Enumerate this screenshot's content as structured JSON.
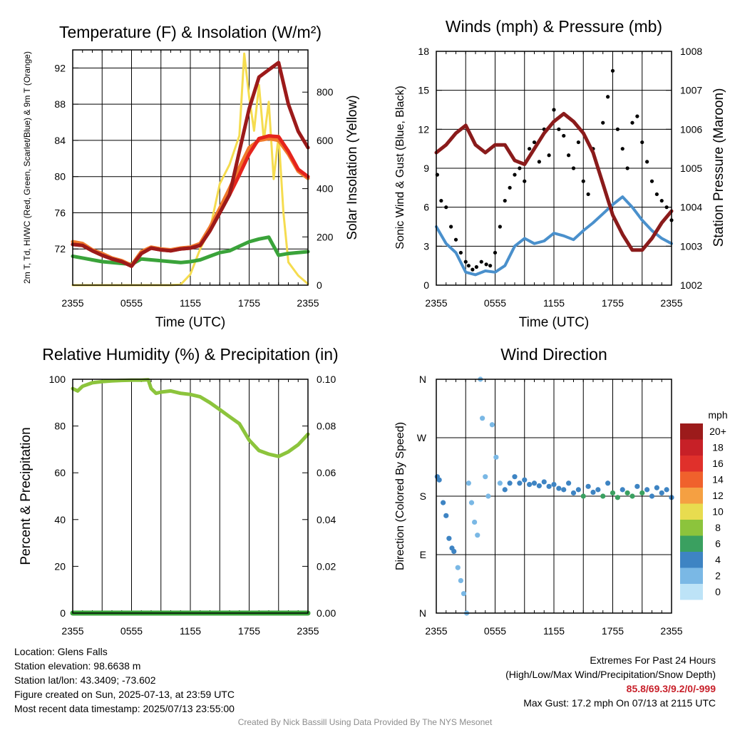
{
  "chart_data": [
    {
      "type": "line",
      "title": "Temperature (F) & Insolation (W/m²)",
      "xlabel": "Time (UTC)",
      "ylabel_left": "2m T, Td, HI/WC (Red, Green, Scarlet/Blue) & 9m T (Orange)",
      "ylabel_right": "Solar Insolation (Yellow)",
      "x_ticks": [
        "2355",
        "0555",
        "1155",
        "1755",
        "2355"
      ],
      "ylim_left": [
        68,
        94
      ],
      "yticks_left": [
        72,
        76,
        80,
        84,
        88,
        92
      ],
      "ylim_right": [
        0,
        975
      ],
      "yticks_right": [
        0,
        200,
        400,
        600,
        800
      ],
      "grid": true,
      "series": [
        {
          "color": "#e5241d",
          "axis": "left",
          "x": [
            0,
            1,
            2,
            3,
            4,
            5,
            6,
            7,
            8,
            9,
            10,
            11,
            12,
            13,
            14,
            15,
            16,
            17,
            18,
            19,
            20,
            21,
            22,
            23,
            24
          ],
          "values": [
            72.5,
            72.4,
            71.8,
            71.3,
            70.9,
            70.6,
            70.1,
            71.5,
            72.1,
            71.9,
            71.8,
            72.0,
            72.1,
            72.4,
            74.0,
            76.0,
            78.0,
            80.2,
            82.5,
            84.2,
            84.5,
            84.4,
            82.8,
            80.8,
            80.0
          ]
        },
        {
          "color": "#f07a2c",
          "axis": "left",
          "x": [
            0,
            1,
            2,
            3,
            4,
            5,
            6,
            7,
            8,
            9,
            10,
            11,
            12,
            13,
            14,
            15,
            16,
            17,
            18,
            19,
            20,
            21,
            22,
            23,
            24
          ],
          "values": [
            72.8,
            72.6,
            71.9,
            71.5,
            71.0,
            70.7,
            70.2,
            71.7,
            72.2,
            72.0,
            71.9,
            72.1,
            72.2,
            72.6,
            74.4,
            76.5,
            78.7,
            81.0,
            83.2,
            84.0,
            84.2,
            84.0,
            82.5,
            80.6,
            79.8
          ]
        },
        {
          "color": "#9c1a1a",
          "axis": "left",
          "x": [
            0,
            1,
            2,
            3,
            4,
            5,
            6,
            7,
            8,
            9,
            10,
            11,
            12,
            13,
            14,
            15,
            16,
            17,
            18,
            19,
            20,
            21,
            22,
            23,
            24
          ],
          "values": [
            72.5,
            72.4,
            71.8,
            71.3,
            70.9,
            70.6,
            70.1,
            71.5,
            72.1,
            71.9,
            71.8,
            72.0,
            72.1,
            72.4,
            74.0,
            76.0,
            78.0,
            82.8,
            87.5,
            91.0,
            91.8,
            92.6,
            88.0,
            85.0,
            83.2
          ]
        },
        {
          "color": "#3aa33a",
          "axis": "left",
          "x": [
            0,
            1,
            2,
            3,
            4,
            5,
            6,
            7,
            8,
            9,
            10,
            11,
            12,
            13,
            14,
            15,
            16,
            17,
            18,
            19,
            20,
            21,
            22,
            23,
            24
          ],
          "values": [
            71.2,
            71.0,
            70.8,
            70.6,
            70.5,
            70.4,
            70.3,
            70.9,
            70.8,
            70.7,
            70.6,
            70.5,
            70.6,
            70.8,
            71.2,
            71.6,
            71.8,
            72.3,
            72.8,
            73.1,
            73.3,
            71.3,
            71.5,
            71.6,
            71.7
          ]
        },
        {
          "color": "#f5dc4f",
          "axis": "right",
          "x": [
            0,
            1,
            2,
            3,
            4,
            5,
            6,
            7,
            8,
            9,
            10,
            11,
            12,
            13,
            14,
            15,
            16,
            17,
            17.5,
            18,
            18.5,
            19,
            19.5,
            20,
            20.5,
            21,
            21.5,
            22,
            23,
            24
          ],
          "values": [
            0,
            0,
            0,
            0,
            0,
            0,
            0,
            0,
            0,
            0,
            0,
            2,
            45,
            150,
            230,
            420,
            500,
            620,
            960,
            780,
            640,
            830,
            600,
            760,
            440,
            620,
            300,
            95,
            40,
            5
          ]
        }
      ]
    },
    {
      "type": "line",
      "title": "Winds (mph) & Pressure (mb)",
      "xlabel": "Time (UTC)",
      "ylabel_left": "Sonic Wind & Gust (Blue, Black)",
      "ylabel_right": "Station Pressure (Maroon)",
      "x_ticks": [
        "2355",
        "0555",
        "1155",
        "1755",
        "2355"
      ],
      "ylim_left": [
        0,
        18
      ],
      "yticks_left": [
        0,
        3,
        6,
        9,
        12,
        15,
        18
      ],
      "ylim_right": [
        1002,
        1008
      ],
      "yticks_right": [
        1002,
        1003,
        1004,
        1005,
        1006,
        1007,
        1008
      ],
      "grid": true,
      "series": [
        {
          "color": "#4a90cc",
          "axis": "left",
          "x": [
            0,
            1,
            2,
            3,
            4,
            5,
            6,
            7,
            8,
            9,
            10,
            11,
            12,
            13,
            14,
            15,
            16,
            17,
            18,
            19,
            20,
            21,
            22,
            23,
            24
          ],
          "values": [
            4.5,
            3.2,
            2.5,
            1.0,
            0.8,
            1.1,
            1.0,
            1.5,
            3.0,
            3.6,
            3.2,
            3.4,
            4.0,
            3.8,
            3.5,
            4.2,
            4.8,
            5.5,
            6.2,
            6.8,
            6.0,
            5.0,
            4.2,
            3.6,
            3.2
          ]
        },
        {
          "color": "#8a1b1b",
          "axis": "right",
          "x": [
            0,
            1,
            2,
            3,
            4,
            5,
            6,
            7,
            8,
            9,
            10,
            11,
            12,
            13,
            14,
            15,
            16,
            17,
            18,
            19,
            20,
            21,
            22,
            23,
            24
          ],
          "values": [
            1005.4,
            1005.6,
            1005.9,
            1006.1,
            1005.6,
            1005.4,
            1005.6,
            1005.6,
            1005.2,
            1005.1,
            1005.5,
            1005.9,
            1006.2,
            1006.4,
            1006.2,
            1005.9,
            1005.4,
            1004.6,
            1003.8,
            1003.3,
            1002.9,
            1002.9,
            1003.2,
            1003.6,
            1003.9
          ]
        },
        {
          "color": "#000000",
          "axis": "left",
          "type": "scatter",
          "x": [
            0.1,
            0.5,
            1.0,
            1.5,
            2.0,
            2.5,
            3.0,
            3.3,
            3.7,
            4.1,
            4.6,
            5.1,
            5.5,
            6.0,
            6.5,
            7.0,
            7.5,
            8.0,
            8.5,
            9.0,
            9.5,
            10.0,
            10.5,
            11.0,
            11.5,
            12.0,
            12.5,
            13.0,
            13.5,
            14.0,
            14.5,
            15.0,
            15.5,
            16.0,
            16.5,
            17.0,
            17.5,
            18.0,
            18.5,
            19.0,
            19.5,
            20.0,
            20.5,
            21.0,
            21.5,
            22.0,
            22.5,
            23.0,
            23.5,
            24.0
          ],
          "values": [
            8.5,
            6.5,
            6.0,
            4.5,
            3.5,
            2.5,
            1.8,
            1.5,
            1.2,
            1.4,
            1.8,
            1.6,
            1.5,
            2.5,
            4.5,
            6.5,
            7.5,
            8.5,
            9.0,
            8.0,
            10.5,
            11.0,
            9.5,
            12.0,
            10.0,
            13.5,
            12.0,
            11.5,
            10.0,
            9.0,
            11.0,
            8.0,
            7.0,
            10.5,
            9.0,
            12.5,
            14.5,
            16.5,
            12.0,
            10.5,
            9.0,
            12.5,
            13.0,
            11.0,
            9.5,
            8.0,
            7.0,
            6.5,
            6.0,
            5.0
          ]
        }
      ]
    },
    {
      "type": "line",
      "title": "Relative Humidity (%) & Precipitation (in)",
      "ylabel_left": "Percent & Precipitation",
      "x_ticks": [
        "2355",
        "0555",
        "1155",
        "1755",
        "2355"
      ],
      "ylim_left": [
        0,
        100
      ],
      "yticks_left": [
        0,
        20,
        40,
        60,
        80,
        100
      ],
      "ylim_right": [
        0,
        0.1
      ],
      "yticks_right": [
        "0.00",
        "0.02",
        "0.04",
        "0.06",
        "0.08",
        "0.10"
      ],
      "grid": true,
      "series": [
        {
          "color": "#8cc43c",
          "axis": "left",
          "x": [
            0,
            0.5,
            1,
            2,
            3,
            4,
            5,
            6,
            7,
            7.7,
            8,
            8.5,
            9,
            10,
            11,
            12,
            13,
            14,
            15,
            16,
            17,
            18,
            19,
            20,
            21,
            22,
            23,
            24
          ],
          "values": [
            96,
            95,
            97,
            98.5,
            99,
            99.3,
            99.5,
            99.6,
            99.6,
            99.8,
            96,
            94,
            94.5,
            95,
            94,
            93.5,
            92.5,
            90,
            87,
            84,
            81,
            74,
            69.5,
            68,
            67,
            69,
            72,
            76.5
          ]
        },
        {
          "color": "#3aa33a",
          "axis": "right",
          "x": [
            0,
            24
          ],
          "values": [
            0,
            0
          ]
        }
      ]
    },
    {
      "type": "scatter",
      "title": "Wind Direction",
      "ylabel_left": "Direction (Colored By Speed)",
      "x_ticks": [
        "2355",
        "0555",
        "1155",
        "1755",
        "2355"
      ],
      "y_ticks": [
        "N",
        "E",
        "S",
        "W",
        "N"
      ],
      "ylim_left": [
        0,
        360
      ],
      "legend_title": "mph",
      "legend_labels": [
        "20+",
        "18",
        "16",
        "14",
        "12",
        "10",
        "8",
        "6",
        "4",
        "2",
        "0"
      ],
      "legend_colors": [
        "#9c1b1b",
        "#c72027",
        "#e0302b",
        "#f0612c",
        "#f5a042",
        "#e8dc4f",
        "#8cc43c",
        "#3aa060",
        "#3e84c3",
        "#7ab8e5",
        "#bde3f7"
      ],
      "grid": true,
      "points": [
        {
          "x": 0.1,
          "dir": 210,
          "speed": 4
        },
        {
          "x": 0.3,
          "dir": 205,
          "speed": 4
        },
        {
          "x": 0.7,
          "dir": 170,
          "speed": 3
        },
        {
          "x": 1.0,
          "dir": 150,
          "speed": 4
        },
        {
          "x": 1.3,
          "dir": 115,
          "speed": 4
        },
        {
          "x": 1.6,
          "dir": 100,
          "speed": 4
        },
        {
          "x": 1.8,
          "dir": 95,
          "speed": 4
        },
        {
          "x": 2.2,
          "dir": 70,
          "speed": 2
        },
        {
          "x": 2.5,
          "dir": 50,
          "speed": 2
        },
        {
          "x": 2.8,
          "dir": 30,
          "speed": 2
        },
        {
          "x": 3.1,
          "dir": 0,
          "speed": 1
        },
        {
          "x": 3.3,
          "dir": 200,
          "speed": 2
        },
        {
          "x": 3.6,
          "dir": 170,
          "speed": 1
        },
        {
          "x": 3.9,
          "dir": 140,
          "speed": 1
        },
        {
          "x": 4.2,
          "dir": 120,
          "speed": 1
        },
        {
          "x": 4.5,
          "dir": 360,
          "speed": 1
        },
        {
          "x": 4.7,
          "dir": 300,
          "speed": 2
        },
        {
          "x": 5.0,
          "dir": 210,
          "speed": 1
        },
        {
          "x": 5.3,
          "dir": 180,
          "speed": 1
        },
        {
          "x": 5.7,
          "dir": 290,
          "speed": 1
        },
        {
          "x": 6.1,
          "dir": 240,
          "speed": 1
        },
        {
          "x": 6.5,
          "dir": 200,
          "speed": 2
        },
        {
          "x": 7.0,
          "dir": 190,
          "speed": 3
        },
        {
          "x": 7.5,
          "dir": 200,
          "speed": 4
        },
        {
          "x": 8.0,
          "dir": 210,
          "speed": 4
        },
        {
          "x": 8.5,
          "dir": 200,
          "speed": 4
        },
        {
          "x": 9.0,
          "dir": 205,
          "speed": 4
        },
        {
          "x": 9.5,
          "dir": 198,
          "speed": 4
        },
        {
          "x": 10.0,
          "dir": 200,
          "speed": 4
        },
        {
          "x": 10.5,
          "dir": 196,
          "speed": 4
        },
        {
          "x": 11.0,
          "dir": 202,
          "speed": 4
        },
        {
          "x": 11.5,
          "dir": 195,
          "speed": 4
        },
        {
          "x": 12.0,
          "dir": 198,
          "speed": 4
        },
        {
          "x": 12.5,
          "dir": 192,
          "speed": 4
        },
        {
          "x": 13.0,
          "dir": 190,
          "speed": 4
        },
        {
          "x": 13.5,
          "dir": 200,
          "speed": 4
        },
        {
          "x": 14.0,
          "dir": 185,
          "speed": 4
        },
        {
          "x": 14.5,
          "dir": 190,
          "speed": 4
        },
        {
          "x": 15.0,
          "dir": 180,
          "speed": 5
        },
        {
          "x": 15.5,
          "dir": 195,
          "speed": 4
        },
        {
          "x": 16.0,
          "dir": 186,
          "speed": 4
        },
        {
          "x": 16.5,
          "dir": 190,
          "speed": 4
        },
        {
          "x": 17.0,
          "dir": 180,
          "speed": 6
        },
        {
          "x": 17.5,
          "dir": 200,
          "speed": 4
        },
        {
          "x": 18.0,
          "dir": 185,
          "speed": 6
        },
        {
          "x": 18.5,
          "dir": 178,
          "speed": 6
        },
        {
          "x": 19.0,
          "dir": 190,
          "speed": 4
        },
        {
          "x": 19.5,
          "dir": 185,
          "speed": 6
        },
        {
          "x": 20.0,
          "dir": 180,
          "speed": 6
        },
        {
          "x": 20.5,
          "dir": 195,
          "speed": 4
        },
        {
          "x": 21.0,
          "dir": 185,
          "speed": 6
        },
        {
          "x": 21.5,
          "dir": 190,
          "speed": 4
        },
        {
          "x": 22.0,
          "dir": 180,
          "speed": 4
        },
        {
          "x": 22.5,
          "dir": 193,
          "speed": 4
        },
        {
          "x": 23.0,
          "dir": 185,
          "speed": 4
        },
        {
          "x": 23.5,
          "dir": 190,
          "speed": 3
        },
        {
          "x": 24.0,
          "dir": 178,
          "speed": 4
        }
      ]
    }
  ],
  "info": {
    "location": "Location: Glens Falls",
    "elevation": "Station elevation: 98.6638 m",
    "latlon": "Station lat/lon: 43.3409; -73.602",
    "created": "Figure created on Sun, 2025-07-13, at 23:59 UTC",
    "recent": "Most recent data timestamp: 2025/07/13 23:55:00"
  },
  "extremes": {
    "title": "Extremes For Past 24 Hours",
    "subtitle": "(High/Low/Max Wind/Precipitation/Snow Depth)",
    "values": "85.8/69.3/9.2/0/-999",
    "gust": "Max Gust: 17.2 mph On 07/13 at 2115 UTC"
  },
  "credit": "Created By Nick Bassill Using Data Provided By The NYS Mesonet"
}
